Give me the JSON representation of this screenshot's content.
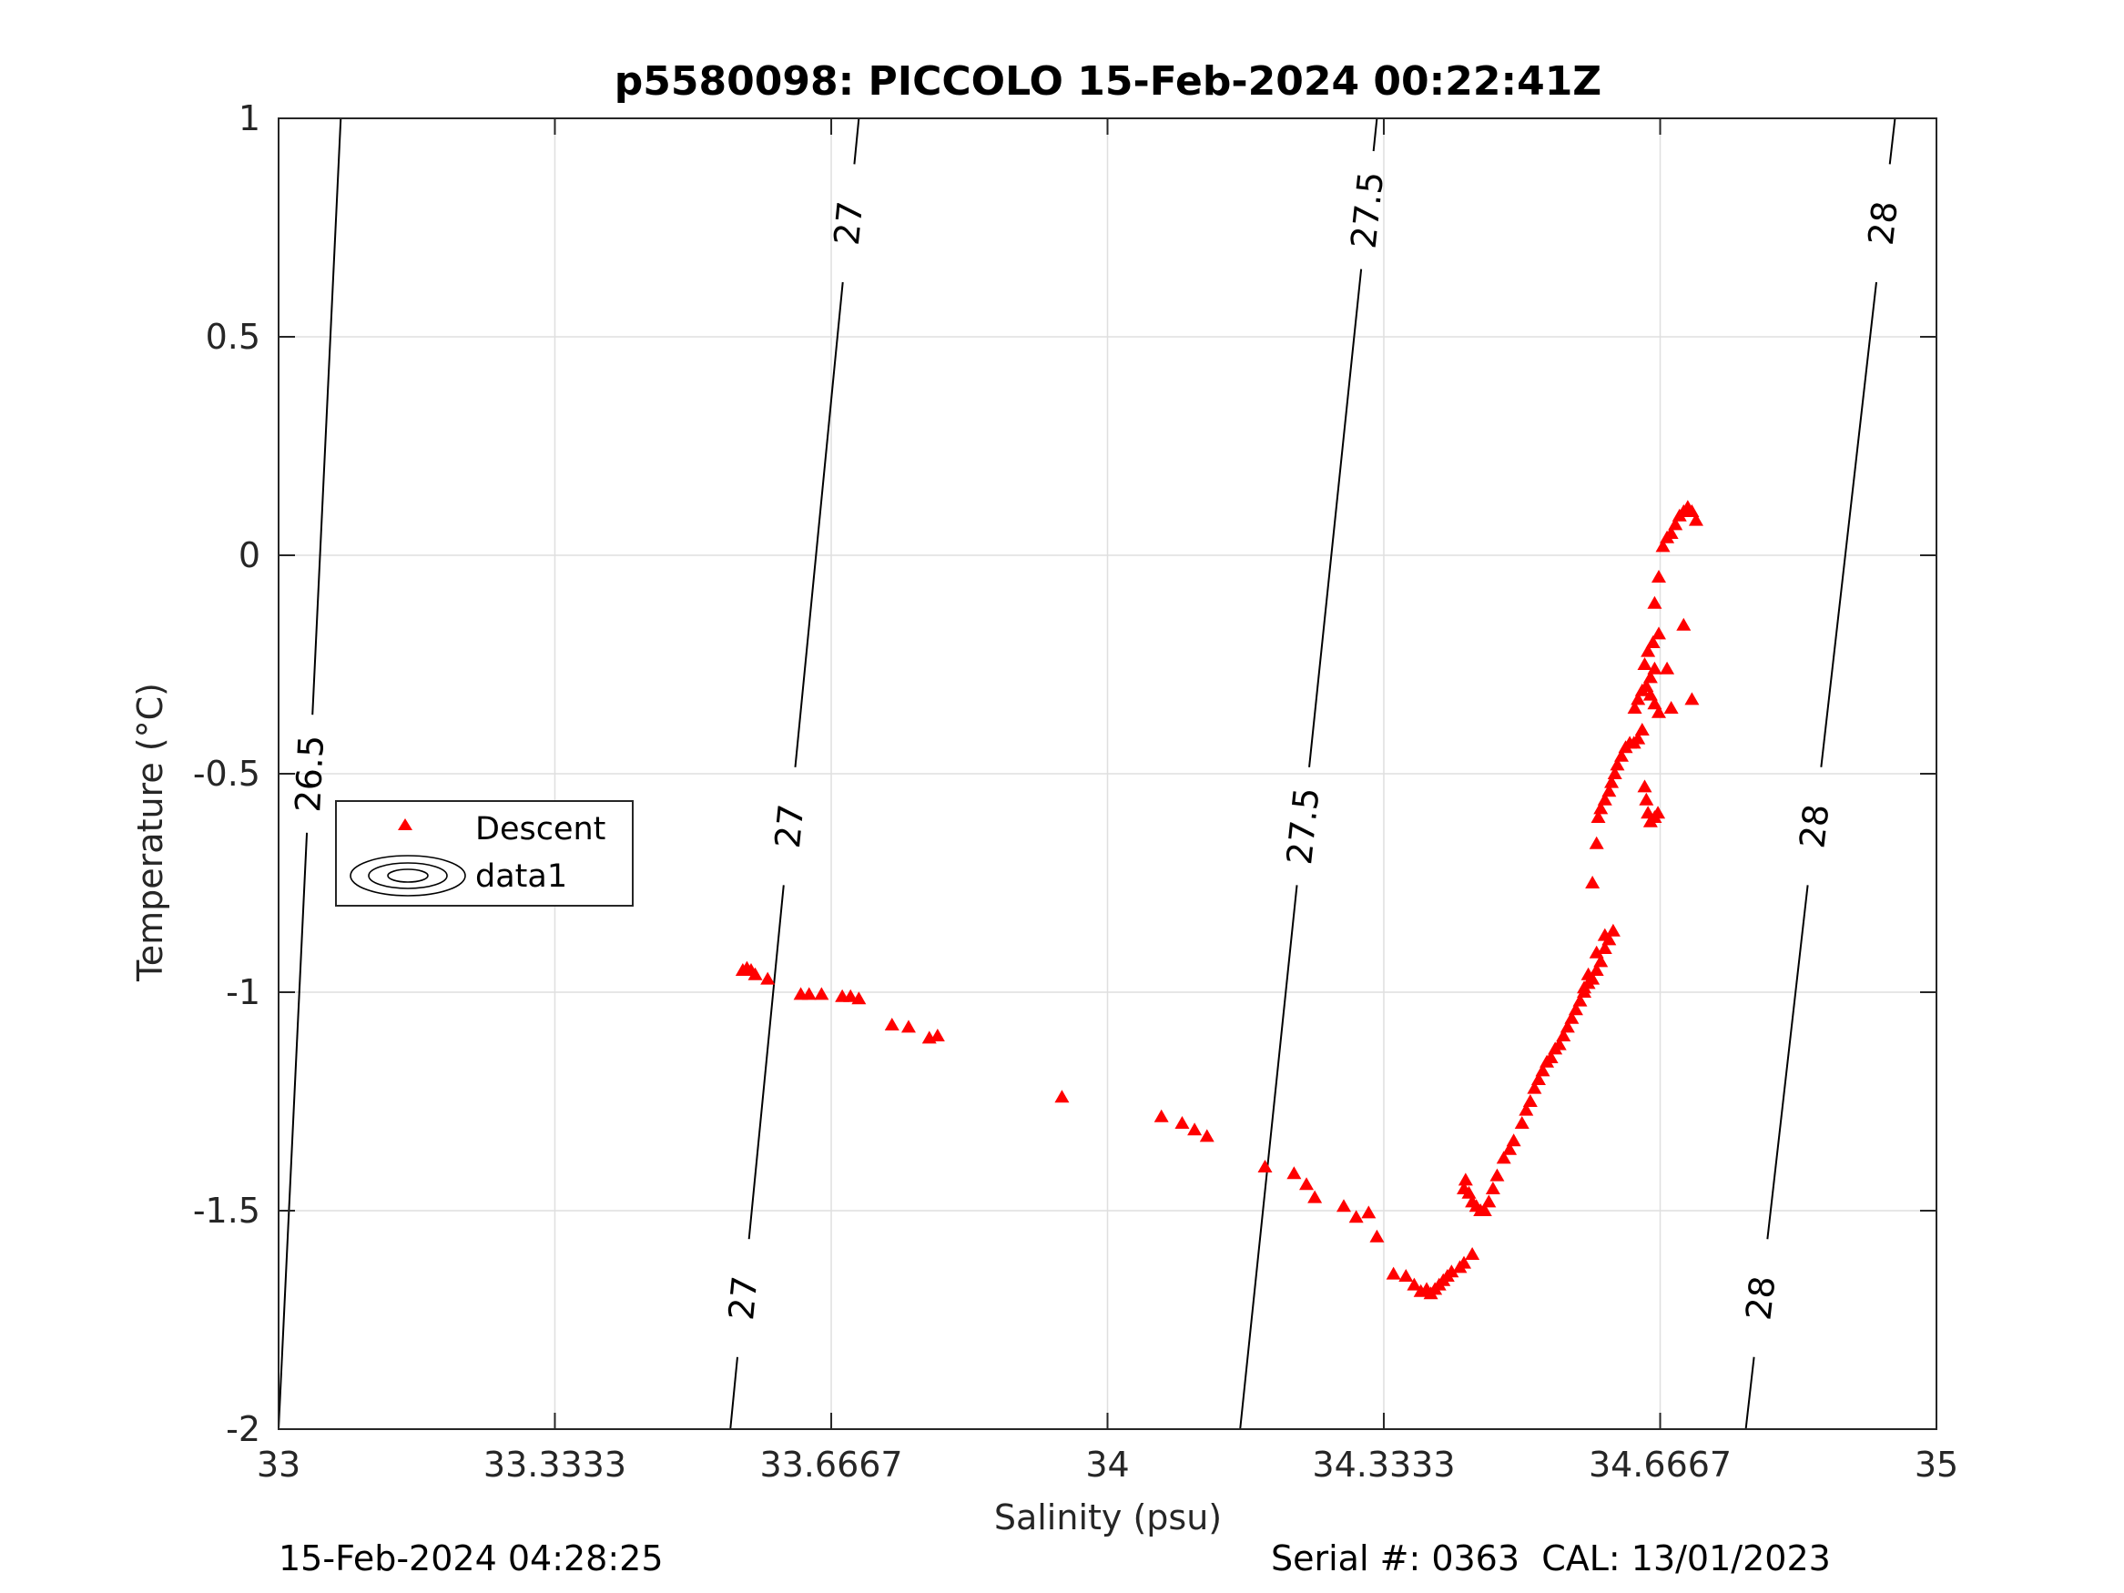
{
  "chart_data": {
    "type": "scatter",
    "title": "p5580098: PICCOLO 15-Feb-2024 00:22:41Z",
    "xlabel": "Salinity (psu)",
    "ylabel": "Temperature (°C)",
    "xlim": [
      33,
      35
    ],
    "ylim": [
      -2,
      1
    ],
    "x_ticks": [
      33,
      33.3333,
      33.6667,
      34,
      34.3333,
      34.6667,
      35
    ],
    "x_tick_labels": [
      "33",
      "33.3333",
      "33.6667",
      "34",
      "34.3333",
      "34.6667",
      "35"
    ],
    "y_ticks": [
      -2,
      -1.5,
      -1,
      -0.5,
      0,
      0.5,
      1
    ],
    "y_tick_labels": [
      "-2",
      "-1.5",
      "-1",
      "-0.5",
      "0",
      "0.5",
      "1"
    ],
    "grid": true,
    "legend": {
      "position": "middle-left",
      "entries": [
        "Descent",
        "data1"
      ]
    },
    "series": [
      {
        "name": "Descent",
        "marker": "triangle",
        "color": "#ff0000",
        "points": [
          [
            33.56,
            -0.95
          ],
          [
            33.565,
            -0.945
          ],
          [
            33.57,
            -0.95
          ],
          [
            33.575,
            -0.96
          ],
          [
            33.59,
            -0.97
          ],
          [
            33.63,
            -1.005
          ],
          [
            33.64,
            -1.005
          ],
          [
            33.655,
            -1.005
          ],
          [
            33.68,
            -1.01
          ],
          [
            33.69,
            -1.01
          ],
          [
            33.7,
            -1.015
          ],
          [
            33.74,
            -1.075
          ],
          [
            33.76,
            -1.08
          ],
          [
            33.785,
            -1.105
          ],
          [
            33.795,
            -1.1
          ],
          [
            33.945,
            -1.24
          ],
          [
            34.065,
            -1.285
          ],
          [
            34.09,
            -1.3
          ],
          [
            34.105,
            -1.315
          ],
          [
            34.12,
            -1.33
          ],
          [
            34.19,
            -1.4
          ],
          [
            34.225,
            -1.415
          ],
          [
            34.24,
            -1.44
          ],
          [
            34.25,
            -1.47
          ],
          [
            34.285,
            -1.49
          ],
          [
            34.3,
            -1.515
          ],
          [
            34.315,
            -1.505
          ],
          [
            34.325,
            -1.56
          ],
          [
            34.345,
            -1.645
          ],
          [
            34.36,
            -1.65
          ],
          [
            34.37,
            -1.67
          ],
          [
            34.378,
            -1.685
          ],
          [
            34.385,
            -1.68
          ],
          [
            34.39,
            -1.69
          ],
          [
            34.395,
            -1.68
          ],
          [
            34.4,
            -1.67
          ],
          [
            34.405,
            -1.66
          ],
          [
            34.41,
            -1.65
          ],
          [
            34.415,
            -1.64
          ],
          [
            34.425,
            -1.63
          ],
          [
            34.43,
            -1.62
          ],
          [
            34.44,
            -1.6
          ],
          [
            34.43,
            -1.45
          ],
          [
            34.432,
            -1.43
          ],
          [
            34.436,
            -1.46
          ],
          [
            34.44,
            -1.48
          ],
          [
            34.445,
            -1.49
          ],
          [
            34.45,
            -1.5
          ],
          [
            34.455,
            -1.5
          ],
          [
            34.46,
            -1.48
          ],
          [
            34.465,
            -1.45
          ],
          [
            34.47,
            -1.42
          ],
          [
            34.478,
            -1.38
          ],
          [
            34.485,
            -1.36
          ],
          [
            34.49,
            -1.34
          ],
          [
            34.5,
            -1.3
          ],
          [
            34.505,
            -1.27
          ],
          [
            34.51,
            -1.25
          ],
          [
            34.515,
            -1.22
          ],
          [
            34.52,
            -1.2
          ],
          [
            34.525,
            -1.18
          ],
          [
            34.53,
            -1.16
          ],
          [
            34.535,
            -1.15
          ],
          [
            34.54,
            -1.13
          ],
          [
            34.545,
            -1.12
          ],
          [
            34.55,
            -1.1
          ],
          [
            34.555,
            -1.08
          ],
          [
            34.56,
            -1.06
          ],
          [
            34.565,
            -1.04
          ],
          [
            34.57,
            -1.02
          ],
          [
            34.575,
            -1.0
          ],
          [
            34.58,
            -0.98
          ],
          [
            34.585,
            -0.97
          ],
          [
            34.59,
            -0.95
          ],
          [
            34.595,
            -0.93
          ],
          [
            34.6,
            -0.9
          ],
          [
            34.605,
            -0.88
          ],
          [
            34.61,
            -0.86
          ],
          [
            34.6,
            -0.87
          ],
          [
            34.59,
            -0.91
          ],
          [
            34.58,
            -0.96
          ],
          [
            34.575,
            -0.99
          ],
          [
            34.585,
            -0.75
          ],
          [
            34.59,
            -0.66
          ],
          [
            34.592,
            -0.6
          ],
          [
            34.595,
            -0.58
          ],
          [
            34.6,
            -0.56
          ],
          [
            34.605,
            -0.54
          ],
          [
            34.608,
            -0.52
          ],
          [
            34.612,
            -0.5
          ],
          [
            34.615,
            -0.48
          ],
          [
            34.62,
            -0.46
          ],
          [
            34.625,
            -0.44
          ],
          [
            34.63,
            -0.43
          ],
          [
            34.635,
            -0.43
          ],
          [
            34.64,
            -0.42
          ],
          [
            34.645,
            -0.4
          ],
          [
            34.636,
            -0.35
          ],
          [
            34.64,
            -0.33
          ],
          [
            34.645,
            -0.31
          ],
          [
            34.65,
            -0.3
          ],
          [
            34.655,
            -0.32
          ],
          [
            34.66,
            -0.34
          ],
          [
            34.665,
            -0.36
          ],
          [
            34.648,
            -0.25
          ],
          [
            34.652,
            -0.22
          ],
          [
            34.658,
            -0.2
          ],
          [
            34.66,
            -0.26
          ],
          [
            34.655,
            -0.28
          ],
          [
            34.665,
            -0.18
          ],
          [
            34.648,
            -0.53
          ],
          [
            34.65,
            -0.56
          ],
          [
            34.652,
            -0.59
          ],
          [
            34.655,
            -0.61
          ],
          [
            34.66,
            -0.6
          ],
          [
            34.664,
            -0.59
          ],
          [
            34.66,
            -0.11
          ],
          [
            34.665,
            -0.05
          ],
          [
            34.67,
            0.02
          ],
          [
            34.675,
            0.04
          ],
          [
            34.68,
            0.05
          ],
          [
            34.685,
            0.07
          ],
          [
            34.69,
            0.09
          ],
          [
            34.695,
            0.1
          ],
          [
            34.7,
            0.11
          ],
          [
            34.705,
            0.1
          ],
          [
            34.71,
            0.08
          ],
          [
            34.675,
            -0.26
          ],
          [
            34.68,
            -0.35
          ],
          [
            34.695,
            -0.16
          ],
          [
            34.705,
            -0.33
          ]
        ]
      }
    ],
    "isopycnals": [
      {
        "label": "26.5",
        "s_bottom": 33.0,
        "s_top": 33.075
      },
      {
        "label": "27",
        "s_bottom": 33.545,
        "s_top": 33.7
      },
      {
        "label": "27.5",
        "s_bottom": 34.16,
        "s_top": 34.325
      },
      {
        "label": "28",
        "s_bottom": 34.77,
        "s_top": 34.95
      }
    ]
  },
  "footer": {
    "left": "15-Feb-2024 04:28:25",
    "right": "Serial #: 0363  CAL: 13/01/2023"
  },
  "colors": {
    "marker": "#ff0000",
    "grid": "#dfdfdf",
    "axis": "#262626",
    "contour": "#000000"
  }
}
